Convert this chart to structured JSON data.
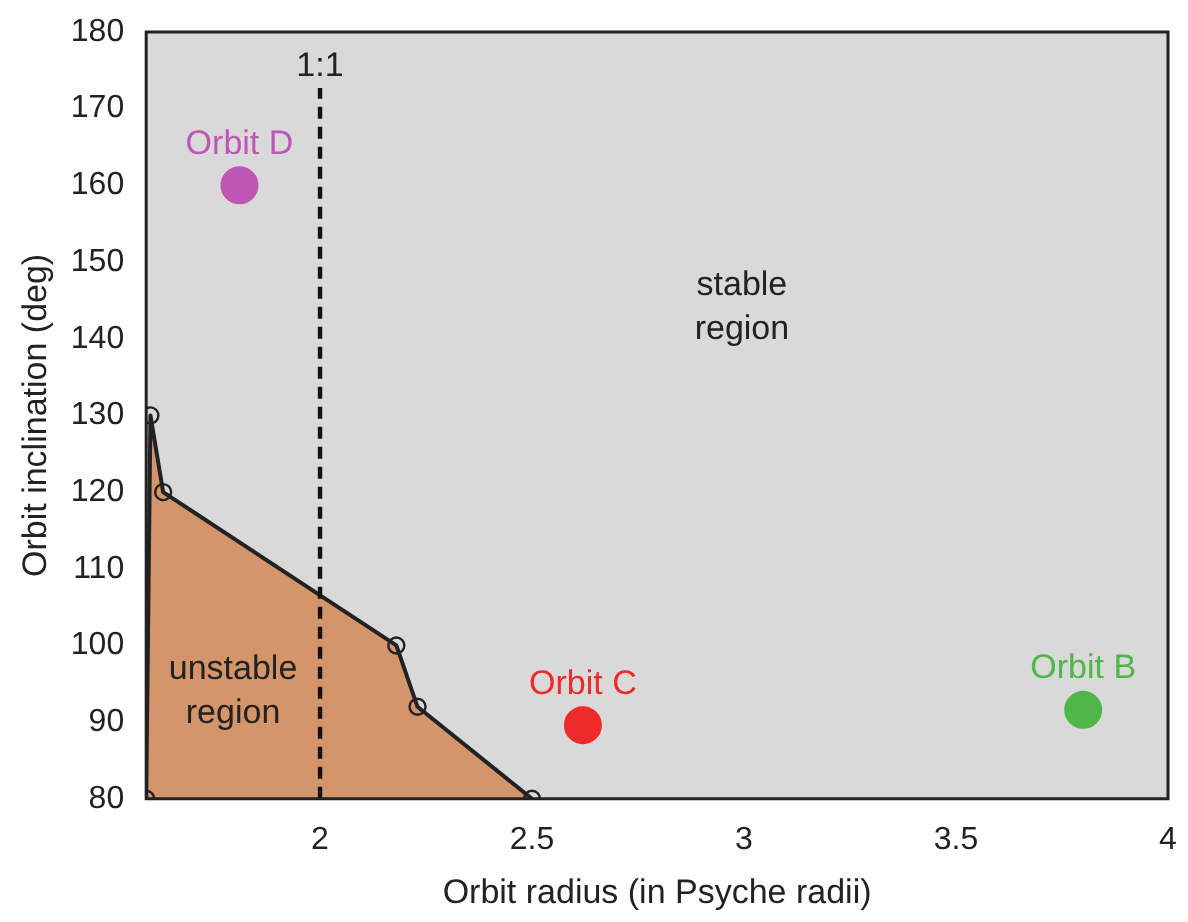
{
  "chart_data": {
    "type": "scatter",
    "xlabel": "Orbit radius (in Psyche radii)",
    "ylabel": "Orbit inclination (deg)",
    "xlim": [
      1.59,
      4
    ],
    "xticks": [
      2,
      2.5,
      3,
      3.5,
      4
    ],
    "ylim": [
      80,
      180
    ],
    "yticks": [
      80,
      90,
      100,
      110,
      120,
      130,
      140,
      150,
      160,
      170,
      180
    ],
    "grid": false,
    "legend": false,
    "series": [
      {
        "type": "area",
        "color": "#d4956a",
        "marker": "circle",
        "x": [
          1.59,
          1.6,
          1.63,
          2.18,
          2.23,
          2.5
        ],
        "values": [
          80,
          130,
          120,
          100,
          92,
          80
        ]
      },
      {
        "name": "Orbit D",
        "color": "#c056b4",
        "marker": "circle",
        "x": [
          1.81
        ],
        "values": [
          160
        ]
      },
      {
        "name": "Orbit C",
        "color": "#ee2a2a",
        "marker": "circle",
        "x": [
          2.62
        ],
        "values": [
          89.6
        ]
      },
      {
        "name": "Orbit B",
        "color": "#4db848",
        "marker": "circle",
        "x": [
          3.8
        ],
        "values": [
          91.6
        ]
      }
    ],
    "ref_lines": [
      {
        "axis": "x",
        "value": 2,
        "line_style": "dashed"
      }
    ],
    "annotations": [
      "stable\nregion",
      "unstable\nregion",
      "1:1"
    ]
  }
}
